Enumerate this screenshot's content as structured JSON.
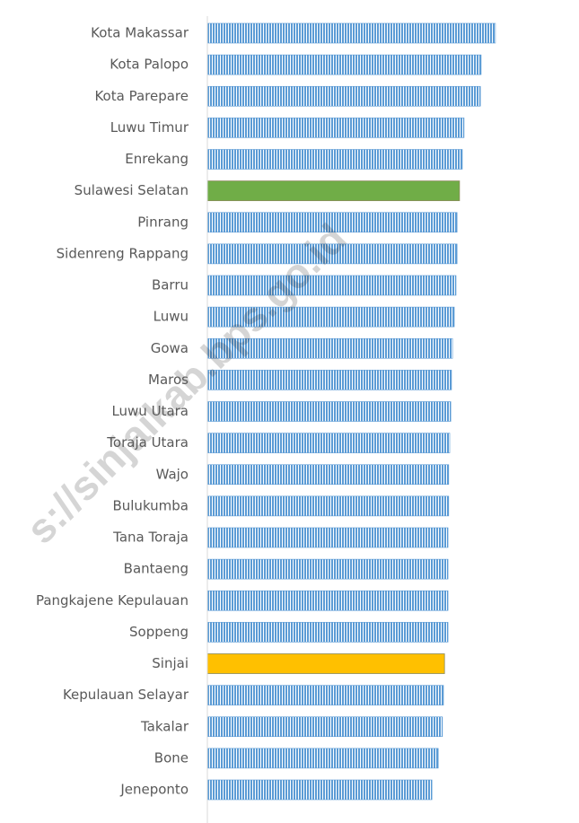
{
  "chart_data": {
    "type": "barh",
    "categories": [
      "Kota Makassar",
      "Kota Palopo",
      "Kota Parepare",
      "Luwu Timur",
      "Enrekang",
      "Sulawesi Selatan",
      "Pinrang",
      "Sidenreng Rappang",
      "Barru",
      "Luwu",
      "Gowa",
      "Maros",
      "Luwu Utara",
      "Toraja Utara",
      "Wajo",
      "Bulukumba",
      "Tana Toraja",
      "Bantaeng",
      "Pangkajene Kepulauan",
      "Soppeng",
      "Sinjai",
      "Kepulauan Selayar",
      "Takalar",
      "Bone",
      "Jeneponto"
    ],
    "values": [
      82.6,
      78.5,
      78.3,
      73.6,
      73.1,
      72.3,
      71.6,
      71.6,
      71.3,
      70.8,
      70.3,
      70.0,
      69.8,
      69.5,
      69.2,
      69.2,
      69.0,
      69.0,
      69.0,
      69.0,
      68.0,
      67.7,
      67.4,
      66.2,
      64.4
    ],
    "colors": [
      "#5b9bd5",
      "#5b9bd5",
      "#5b9bd5",
      "#5b9bd5",
      "#5b9bd5",
      "#70ad47",
      "#5b9bd5",
      "#5b9bd5",
      "#5b9bd5",
      "#5b9bd5",
      "#5b9bd5",
      "#5b9bd5",
      "#5b9bd5",
      "#5b9bd5",
      "#5b9bd5",
      "#5b9bd5",
      "#5b9bd5",
      "#5b9bd5",
      "#5b9bd5",
      "#5b9bd5",
      "#ffc000",
      "#5b9bd5",
      "#5b9bd5",
      "#5b9bd5",
      "#5b9bd5"
    ],
    "hatched_color": "#5b9bd5",
    "xlim": [
      0,
      100
    ],
    "watermark": "s://sinjaikab.bps.go.id"
  }
}
